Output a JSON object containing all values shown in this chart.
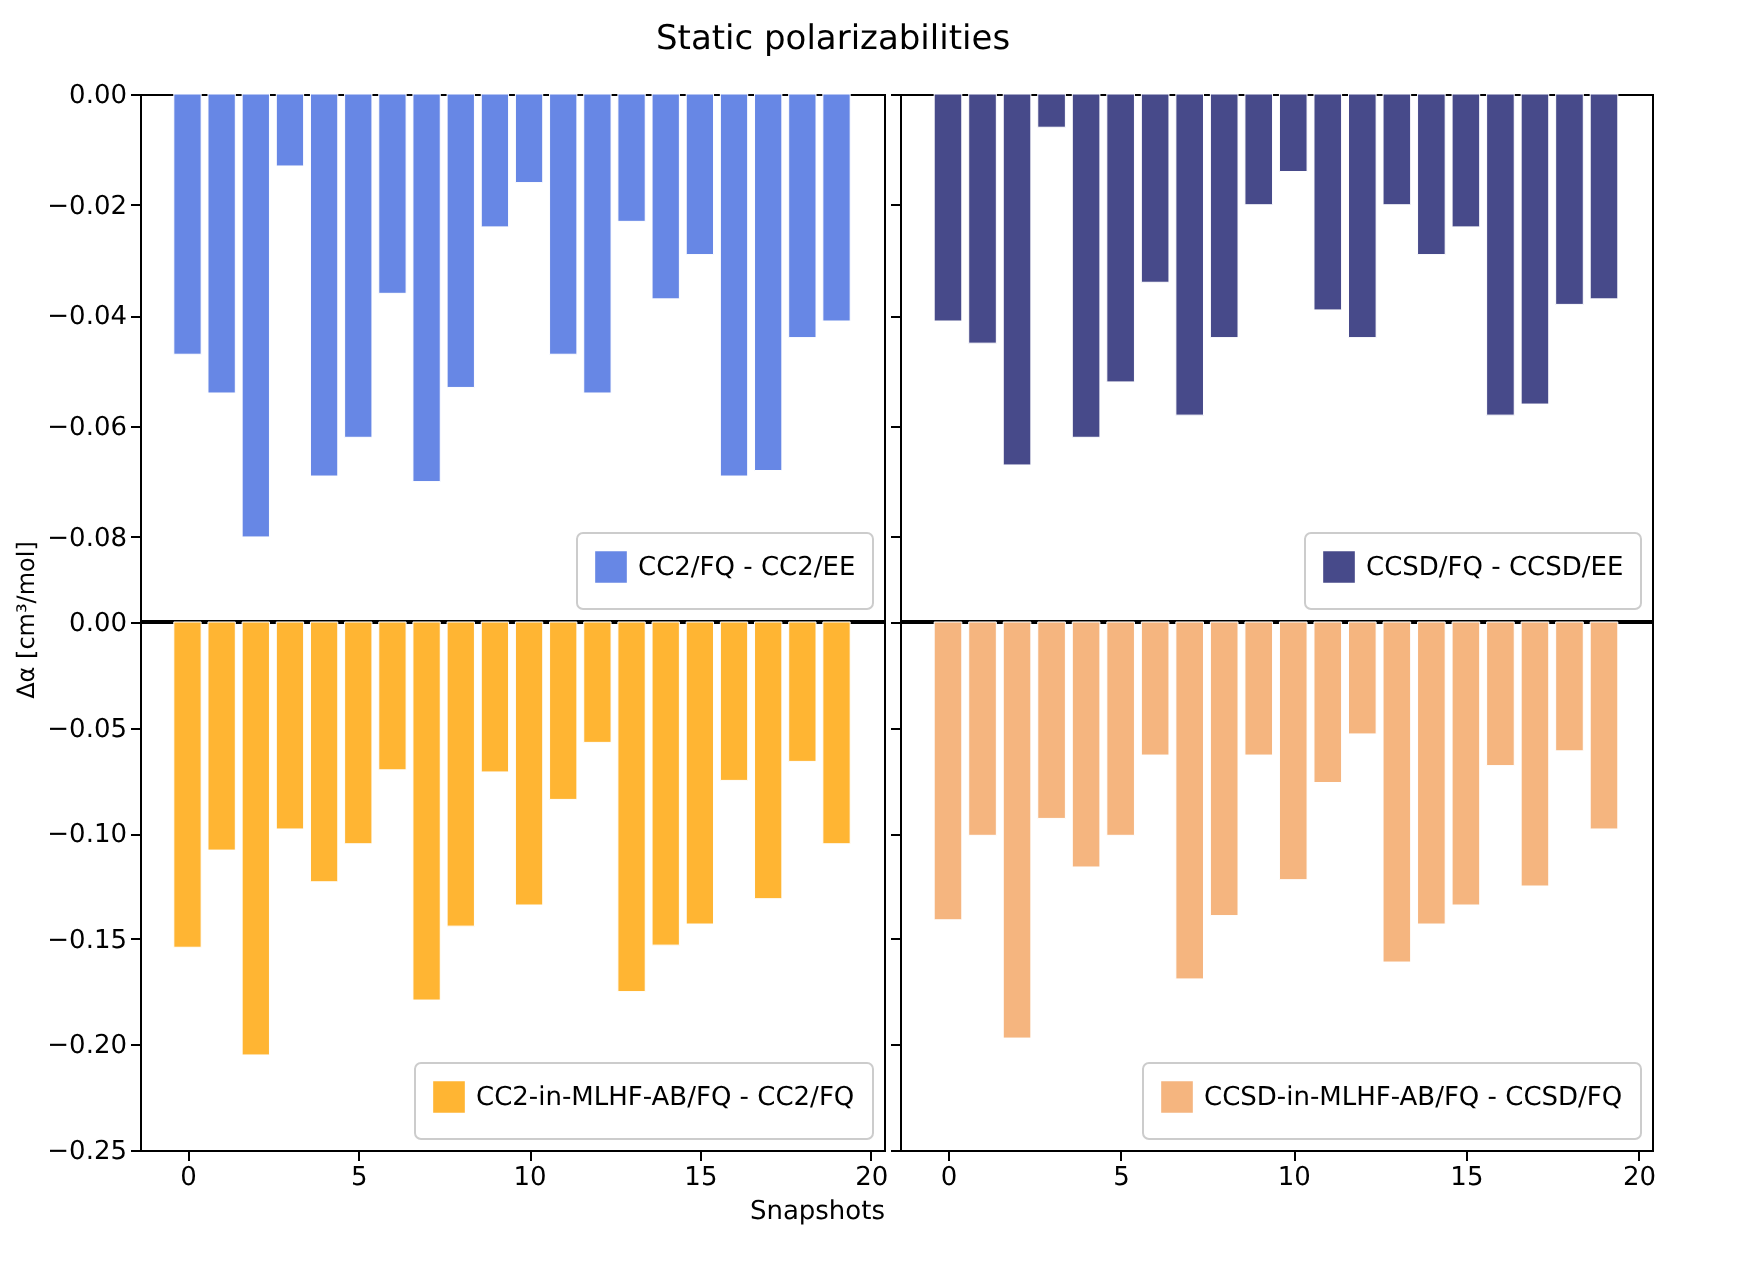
{
  "chart_data": [
    {
      "type": "bar",
      "title": "Static polarizabilities",
      "x": [
        0,
        1,
        2,
        3,
        4,
        5,
        6,
        7,
        8,
        9,
        10,
        11,
        12,
        13,
        14,
        15,
        16,
        17,
        18,
        19
      ],
      "series": [
        {
          "name": "CC2/FQ - CC2/EE",
          "color": "#6787e5",
          "values": [
            -0.047,
            -0.054,
            -0.08,
            -0.013,
            -0.069,
            -0.062,
            -0.036,
            -0.07,
            -0.053,
            -0.024,
            -0.016,
            -0.047,
            -0.054,
            -0.023,
            -0.037,
            -0.029,
            -0.069,
            -0.068,
            -0.044,
            -0.041
          ]
        }
      ],
      "xlim": [
        -1.39,
        20.39
      ],
      "xticks": [
        0,
        5,
        10,
        15,
        20
      ],
      "ylim": [
        -0.095,
        0
      ],
      "yticks": [
        {
          "value": -0.08,
          "label": "−0.08"
        },
        {
          "value": -0.06,
          "label": "−0.06"
        },
        {
          "value": -0.04,
          "label": "−0.04"
        },
        {
          "value": -0.02,
          "label": "−0.02"
        },
        {
          "value": 0,
          "label": "0.00"
        }
      ],
      "tick_labels": "y",
      "legend": "bottom right",
      "grid": false
    },
    {
      "type": "bar",
      "x": [
        0,
        1,
        2,
        3,
        4,
        5,
        6,
        7,
        8,
        9,
        10,
        11,
        12,
        13,
        14,
        15,
        16,
        17,
        18,
        19
      ],
      "series": [
        {
          "name": "CCSD/FQ - CCSD/EE",
          "color": "#474a8a",
          "values": [
            -0.041,
            -0.045,
            -0.067,
            -0.006,
            -0.062,
            -0.052,
            -0.034,
            -0.058,
            -0.044,
            -0.02,
            -0.014,
            -0.039,
            -0.044,
            -0.02,
            -0.029,
            -0.024,
            -0.058,
            -0.056,
            -0.038,
            -0.037
          ]
        }
      ],
      "xlim": [
        -1.39,
        20.39
      ],
      "xticks": [
        0,
        5,
        10,
        15,
        20
      ],
      "ylim": [
        -0.095,
        0
      ],
      "yticks": [
        -0.08,
        -0.06,
        -0.04,
        -0.02,
        0
      ],
      "tick_labels": false,
      "legend": "bottom right",
      "grid": false
    },
    {
      "type": "bar",
      "xlabel": "Snapshots",
      "ylabel": "Δα [cm³/mol]",
      "x": [
        0,
        1,
        2,
        3,
        4,
        5,
        6,
        7,
        8,
        9,
        10,
        11,
        12,
        13,
        14,
        15,
        16,
        17,
        18,
        19
      ],
      "series": [
        {
          "name": "CC2-in-MLHF-AB/FQ - CC2/FQ",
          "color": "#ffb533",
          "values": [
            -0.154,
            -0.108,
            -0.205,
            -0.098,
            -0.123,
            -0.105,
            -0.07,
            -0.179,
            -0.144,
            -0.071,
            -0.134,
            -0.084,
            -0.057,
            -0.175,
            -0.153,
            -0.143,
            -0.075,
            -0.131,
            -0.066,
            -0.105
          ]
        }
      ],
      "xlim": [
        -1.39,
        20.39
      ],
      "xticks": [
        0,
        5,
        10,
        15,
        20
      ],
      "ylim": [
        -0.25,
        0
      ],
      "yticks": [
        {
          "value": -0.25,
          "label": "−0.25"
        },
        {
          "value": -0.2,
          "label": "−0.20"
        },
        {
          "value": -0.15,
          "label": "−0.15"
        },
        {
          "value": -0.1,
          "label": "−0.10"
        },
        {
          "value": -0.05,
          "label": "−0.05"
        },
        {
          "value": 0,
          "label": "0.00"
        }
      ],
      "legend": "bottom right",
      "grid": false
    },
    {
      "type": "bar",
      "x": [
        0,
        1,
        2,
        3,
        4,
        5,
        6,
        7,
        8,
        9,
        10,
        11,
        12,
        13,
        14,
        15,
        16,
        17,
        18,
        19
      ],
      "series": [
        {
          "name": "CCSD-in-MLHF-AB/FQ - CCSD/FQ",
          "color": "#f5b57f",
          "values": [
            -0.141,
            -0.101,
            -0.197,
            -0.093,
            -0.116,
            -0.101,
            -0.063,
            -0.169,
            -0.139,
            -0.063,
            -0.122,
            -0.076,
            -0.053,
            -0.161,
            -0.143,
            -0.134,
            -0.068,
            -0.125,
            -0.061,
            -0.098
          ]
        }
      ],
      "xlim": [
        -1.39,
        20.39
      ],
      "xticks": [
        0,
        5,
        10,
        15,
        20
      ],
      "ylim": [
        -0.25,
        0
      ],
      "yticks": [
        -0.25,
        -0.2,
        -0.15,
        -0.1,
        -0.05,
        0
      ],
      "tick_labels": "x",
      "legend": "bottom right",
      "grid": false
    }
  ]
}
